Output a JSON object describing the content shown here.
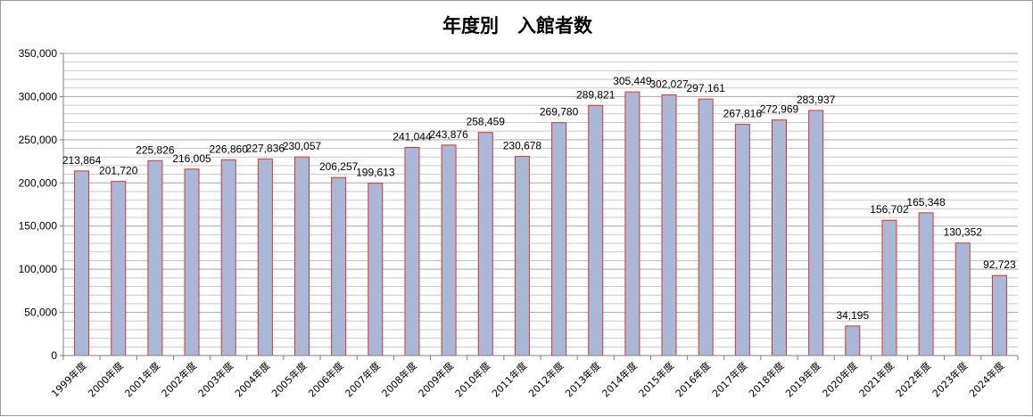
{
  "chart_data": {
    "type": "bar",
    "title": "年度別　入館者数",
    "xlabel": "",
    "ylabel": "",
    "ylim": [
      0,
      350000
    ],
    "major_step": 50000,
    "minor_step": 10000,
    "grid": true,
    "legend": "none",
    "y_tick_labels": [
      "0",
      "50,000",
      "100,000",
      "150,000",
      "200,000",
      "250,000",
      "300,000",
      "350,000"
    ],
    "categories": [
      "1999年度",
      "2000年度",
      "2001年度",
      "2002年度",
      "2003年度",
      "2004年度",
      "2005年度",
      "2006年度",
      "2007年度",
      "2008年度",
      "2009年度",
      "2010年度",
      "2011年度",
      "2012年度",
      "2013年度",
      "2014年度",
      "2015年度",
      "2016年度",
      "2017年度",
      "2018年度",
      "2019年度",
      "2020年度",
      "2021年度",
      "2022年度",
      "2023年度",
      "2024年度"
    ],
    "values": [
      213864,
      201720,
      225826,
      216005,
      226860,
      227836,
      230057,
      206257,
      199613,
      241044,
      243876,
      258459,
      230678,
      269780,
      289821,
      305449,
      302027,
      297161,
      267816,
      272969,
      283937,
      34195,
      156702,
      165348,
      130352,
      92723
    ],
    "data_labels": [
      "213,864",
      "201,720",
      "225,826",
      "216,005",
      "226,860",
      "227,836",
      "230,057",
      "206,257",
      "199,613",
      "241,044",
      "243,876",
      "258,459",
      "230,678",
      "269,780",
      "289,821",
      "305,449",
      "302,027",
      "297,161",
      "267,816",
      "272,969",
      "283,937",
      "34,195",
      "156,702",
      "165,348",
      "130,352",
      "92,723"
    ],
    "colors": {
      "bar_fill": "#aab8d8",
      "bar_stroke": "#d9342b",
      "grid_major": "#a6a6a6",
      "grid_minor": "#c9c9c9",
      "axis": "#7f7f7f",
      "text": "#000000"
    }
  }
}
